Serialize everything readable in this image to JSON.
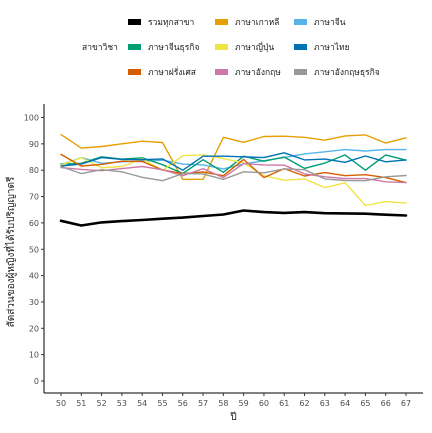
{
  "chart_data": {
    "type": "line",
    "title": "",
    "xlabel": "ปี",
    "ylabel": "สัดส่วนของผู้หญิงที่ได้รับปริญญาตรี",
    "x": [
      50,
      51,
      52,
      53,
      54,
      55,
      56,
      57,
      58,
      59,
      60,
      61,
      62,
      63,
      64,
      65,
      66,
      67
    ],
    "xlim": [
      50,
      67
    ],
    "ylim": [
      0,
      100
    ],
    "yticks": [
      0,
      10,
      20,
      30,
      40,
      50,
      60,
      70,
      80,
      90,
      100
    ],
    "grid": false,
    "legend": {
      "title": "สาขาวิชา",
      "placement": "top"
    },
    "series": [
      {
        "name": "รวมทุกสาขา",
        "color": "#000000",
        "values": [
          60.8,
          59.0,
          60.2,
          60.7,
          61.1,
          61.6,
          62.0,
          62.6,
          63.2,
          64.7,
          64.1,
          63.8,
          64.1,
          63.7,
          63.6,
          63.5,
          63.1,
          62.8
        ]
      },
      {
        "name": "ภาษาเกาหลี",
        "color": "#E69F00",
        "values": [
          93.5,
          88.4,
          89.0,
          90.0,
          91.0,
          90.5,
          76.5,
          76.6,
          92.5,
          90.6,
          92.8,
          92.9,
          92.5,
          91.4,
          93.0,
          93.4,
          90.3,
          92.3
        ]
      },
      {
        "name": "ภาษาจีน",
        "color": "#56B4E9",
        "values": [
          82.1,
          84.8,
          82.6,
          83.2,
          83.5,
          83.8,
          82.3,
          82.0,
          80.5,
          82.4,
          83.6,
          84.8,
          86.2,
          87.0,
          87.8,
          87.3,
          87.8,
          87.8
        ]
      },
      {
        "name": "ภาษาจีนธุรกิจ",
        "color": "#009E73",
        "values": [
          82.3,
          82.6,
          85.1,
          84.2,
          84.7,
          82.1,
          78.8,
          84.0,
          79.2,
          85.3,
          83.4,
          85.0,
          80.7,
          82.7,
          85.8,
          80.0,
          85.8,
          83.8
        ]
      },
      {
        "name": "ภาษาญี่ปุ่น",
        "color": "#F0E442",
        "values": [
          81.9,
          84.8,
          80.9,
          81.4,
          84.3,
          79.9,
          85.5,
          85.8,
          84.4,
          82.8,
          77.9,
          76.2,
          76.7,
          73.4,
          75.2,
          66.6,
          68.1,
          67.5
        ]
      },
      {
        "name": "ภาษาไทย",
        "color": "#0072B2",
        "values": [
          81.6,
          82.3,
          84.8,
          84.1,
          84.0,
          84.3,
          80.0,
          85.3,
          85.3,
          85.1,
          84.8,
          86.6,
          83.9,
          84.2,
          83.0,
          85.4,
          83.2,
          83.9
        ]
      },
      {
        "name": "ภาษาฝรั่งเศส",
        "color": "#D55E00",
        "values": [
          86.0,
          81.6,
          82.2,
          83.4,
          83.3,
          80.1,
          78.7,
          79.3,
          77.9,
          84.1,
          77.2,
          80.6,
          77.8,
          79.1,
          77.9,
          78.3,
          77.2,
          75.3
        ]
      },
      {
        "name": "ภาษาอังกฤษ",
        "color": "#CC79A7",
        "values": [
          81.0,
          80.3,
          79.8,
          80.6,
          81.4,
          80.2,
          77.9,
          80.6,
          77.2,
          82.5,
          82.0,
          81.9,
          78.6,
          77.5,
          76.8,
          76.8,
          75.6,
          75.3
        ]
      },
      {
        "name": "ภาษาอังกฤษธุรกิจ",
        "color": "#999999",
        "values": [
          81.4,
          78.7,
          80.2,
          79.4,
          77.3,
          76.0,
          78.7,
          78.6,
          76.5,
          79.4,
          79.0,
          80.5,
          80.2,
          76.7,
          76.1,
          76.0,
          77.5,
          78.0
        ]
      }
    ]
  }
}
